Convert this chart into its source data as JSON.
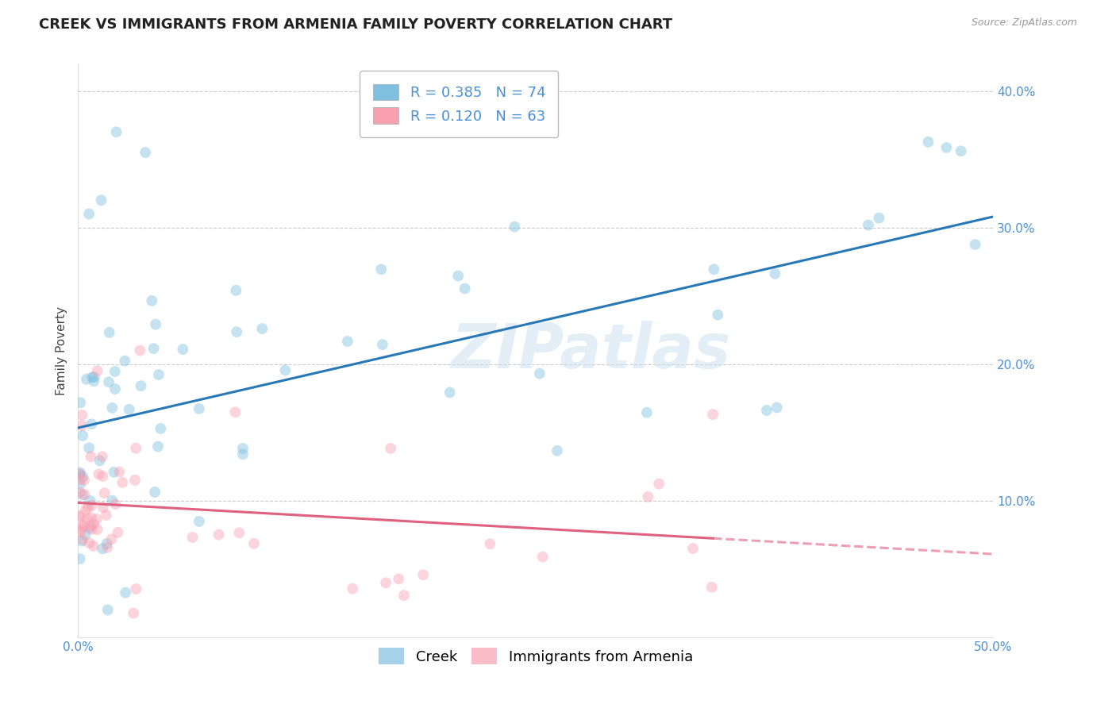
{
  "title": "CREEK VS IMMIGRANTS FROM ARMENIA FAMILY POVERTY CORRELATION CHART",
  "source": "Source: ZipAtlas.com",
  "ylabel": "Family Poverty",
  "xlim": [
    0,
    0.5
  ],
  "ylim": [
    0,
    0.42
  ],
  "xtick_vals": [
    0.0,
    0.1,
    0.2,
    0.3,
    0.4,
    0.5
  ],
  "xtick_labels": [
    "0.0%",
    "",
    "",
    "",
    "",
    "50.0%"
  ],
  "ytick_vals": [
    0.1,
    0.2,
    0.3,
    0.4
  ],
  "ytick_labels": [
    "10.0%",
    "20.0%",
    "30.0%",
    "40.0%"
  ],
  "creek_R": 0.385,
  "creek_N": 74,
  "armenia_R": 0.12,
  "armenia_N": 63,
  "creek_color": "#7fbfdf",
  "armenia_color": "#f9a0b0",
  "creek_line_color": "#2878b8",
  "armenia_line_color": "#e06080",
  "background_color": "#ffffff",
  "grid_color": "#cccccc",
  "tick_color": "#4a90d9",
  "title_fontsize": 13,
  "axis_label_fontsize": 11,
  "tick_fontsize": 11,
  "legend_fontsize": 13,
  "marker_size": 10,
  "marker_alpha": 0.45,
  "line_width": 2.2,
  "watermark": "ZIPatlas"
}
